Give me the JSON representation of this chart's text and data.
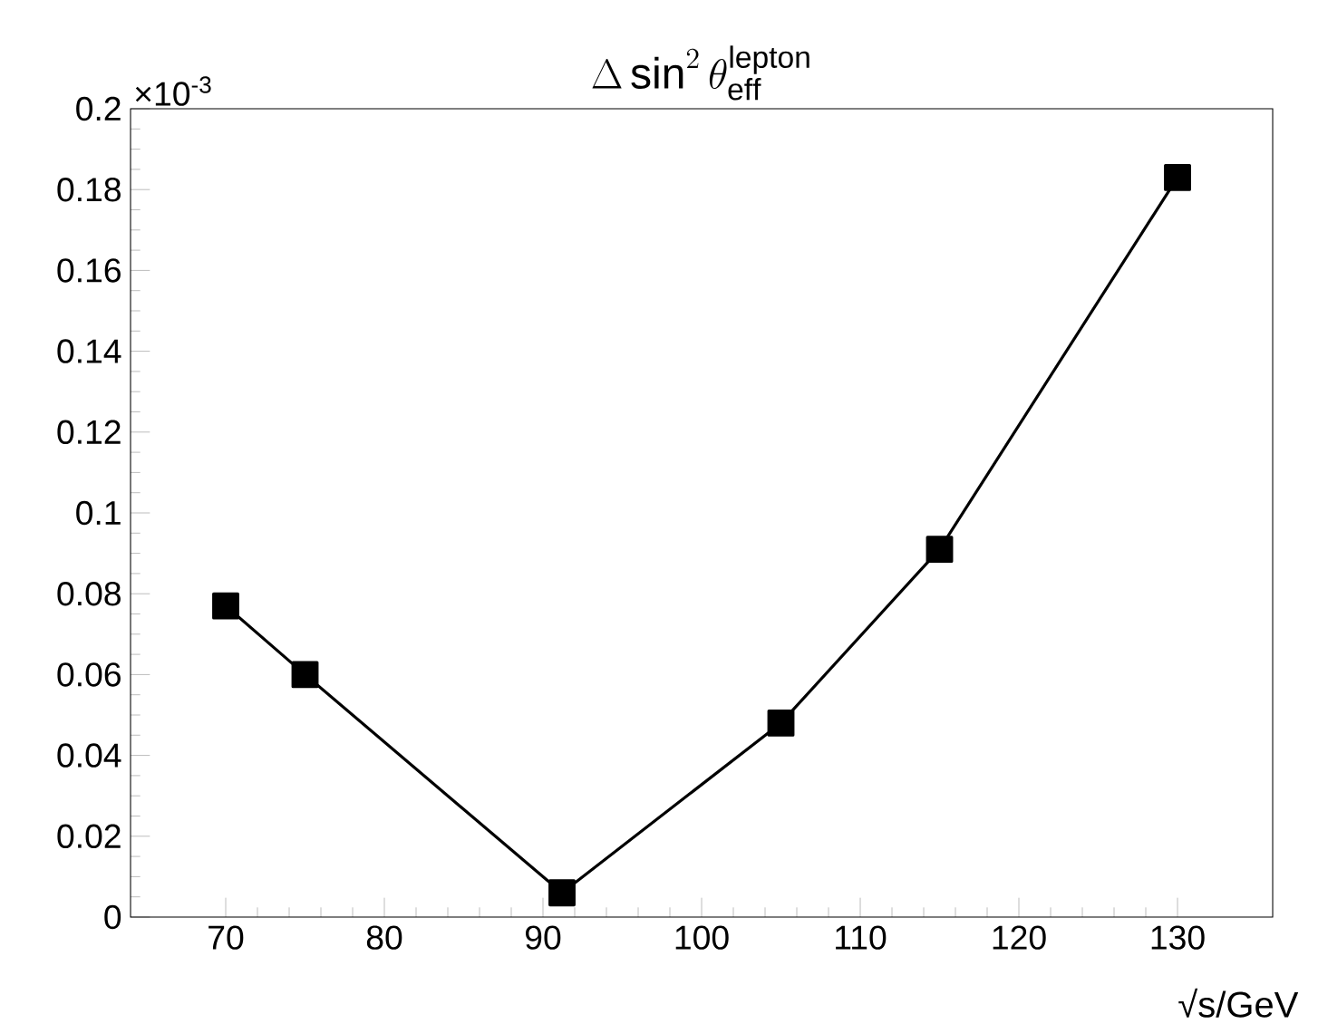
{
  "chart_data": {
    "type": "line",
    "title": "\\Delta\\sin^{2}\\theta^{\\mathrm{lepton}}_{\\mathrm{eff}}",
    "xlabel": "√s/GeV",
    "annotations": [
      "×10$^{-3}$"
    ],
    "x": [
      70,
      75,
      91.2,
      105,
      115,
      130
    ],
    "series": [
      {
        "color": "#000000",
        "values": [
          0.077,
          0.06,
          0.006,
          0.048,
          0.091,
          0.183
        ]
      }
    ],
    "xlim": [
      64,
      136
    ],
    "xticks": [
      70,
      80,
      90,
      100,
      110,
      120,
      130
    ],
    "ylim": [
      0,
      0.2
    ],
    "yticks": [
      0,
      0.02,
      0.04,
      0.06,
      0.08,
      0.1,
      0.12,
      0.14,
      0.16,
      0.18,
      0.2
    ],
    "marker": "square",
    "line_style": "solid"
  }
}
